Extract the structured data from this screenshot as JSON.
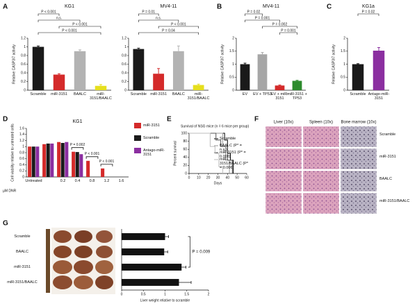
{
  "figure": {
    "letters": [
      "A",
      "B",
      "C",
      "D",
      "E",
      "F",
      "G"
    ],
    "panel_f": {
      "columns": [
        "Liver (10x)",
        "Spleen (10x)",
        "Bone marrow (10x)"
      ],
      "rows": [
        "Scramble",
        "miR-3151",
        "BAALC",
        "miR-3151/BAALC"
      ]
    }
  },
  "chart_data": [
    {
      "type": "bar",
      "title": "KG1",
      "ylabel": "Relative CASP3/7 activity",
      "categories": [
        "Scramble",
        "miR-3151",
        "BAALC",
        "miR-3151/BAALC"
      ],
      "values": [
        1.0,
        0.36,
        0.9,
        0.1
      ],
      "errors": [
        0.02,
        0.02,
        0.03,
        0.03
      ],
      "colors": [
        "#1a1a1a",
        "#d42a2a",
        "#b3b3b3",
        "#e6df1e"
      ],
      "ylim": [
        0,
        1.2
      ],
      "yticks": [
        0,
        0.2,
        0.4,
        0.6,
        0.8,
        1,
        1.2
      ],
      "annotations": [
        {
          "text": "P < 0.001",
          "between": [
            0,
            1
          ]
        },
        {
          "text": "n.s.",
          "between": [
            0,
            2
          ]
        },
        {
          "text": "P < 0.001",
          "between": [
            1,
            3
          ]
        },
        {
          "text": "P < 0.001",
          "between": [
            0,
            3
          ]
        }
      ]
    },
    {
      "type": "bar",
      "title": "MV4-11",
      "categories": [
        "Scramble",
        "miR-3151",
        "BAALC",
        "miR-3151/BAALC"
      ],
      "values": [
        0.95,
        0.38,
        0.9,
        0.12
      ],
      "errors": [
        0.02,
        0.12,
        0.12,
        0.02
      ],
      "colors": [
        "#1a1a1a",
        "#d42a2a",
        "#b3b3b3",
        "#e6df1e"
      ],
      "ylim": [
        0,
        1.2
      ],
      "yticks": [
        0,
        0.2,
        0.4,
        0.6,
        0.8,
        1,
        1.2
      ],
      "annotations": [
        {
          "text": "P = 0.01",
          "between": [
            0,
            1
          ]
        },
        {
          "text": "n.s.",
          "between": [
            0,
            2
          ]
        },
        {
          "text": "P < 0.001",
          "between": [
            1,
            3
          ]
        },
        {
          "text": "P = 0.04",
          "between": [
            0,
            3
          ]
        }
      ]
    },
    {
      "type": "bar",
      "title": "MV4-11",
      "ylabel": "Relative CASP3/7 activity",
      "categories": [
        "EV",
        "EV + TP53",
        "EV + miR-3151",
        "miR-3151 + TP53"
      ],
      "values": [
        1.0,
        1.38,
        0.18,
        0.36
      ],
      "errors": [
        0.04,
        0.07,
        0.02,
        0.02
      ],
      "colors": [
        "#1a1a1a",
        "#a6a6a6",
        "#d42a2a",
        "#2e8b2e"
      ],
      "ylim": [
        0,
        2
      ],
      "yticks": [
        0,
        0.5,
        1,
        1.5,
        2
      ],
      "annotations": [
        {
          "text": "P = 0.02",
          "between": [
            0,
            1
          ]
        },
        {
          "text": "P = 0.001",
          "between": [
            0,
            2
          ]
        },
        {
          "text": "P = 0.002",
          "between": [
            1,
            3
          ]
        },
        {
          "text": "P = 0.001",
          "between": [
            2,
            3
          ]
        }
      ]
    },
    {
      "type": "bar",
      "title": "KG1a",
      "ylabel": "Relative CASP3/7 activity",
      "categories": [
        "Scramble",
        "Antago-miR-3151"
      ],
      "values": [
        1.0,
        1.52
      ],
      "errors": [
        0.02,
        0.12
      ],
      "colors": [
        "#1a1a1a",
        "#8b2fa0"
      ],
      "ylim": [
        0,
        2
      ],
      "yticks": [
        0,
        0.5,
        1,
        1.5,
        2
      ],
      "annotations": [
        {
          "text": "P = 0.02",
          "between": [
            0,
            1
          ]
        }
      ]
    },
    {
      "type": "bar",
      "title": "KG1",
      "ylabel": "Cell viability relative to untreated cells",
      "xlabel": "µM DNR",
      "categories": [
        "Untreated",
        null,
        "0.2",
        "0.4",
        "0.8",
        "1.2",
        "1.6"
      ],
      "series": [
        {
          "name": "miR-3151",
          "color": "#d42a2a",
          "values": [
            1.0,
            1.08,
            1.15,
            0.83,
            0.53,
            0.28,
            null
          ]
        },
        {
          "name": "Scramble",
          "color": "#1a1a1a",
          "values": [
            1.0,
            1.1,
            1.12,
            0.82,
            null,
            null,
            null
          ]
        },
        {
          "name": "Antago-miR-3151",
          "color": "#8b2fa0",
          "values": [
            1.0,
            1.1,
            1.15,
            0.75,
            null,
            null,
            null
          ]
        }
      ],
      "ylim": [
        0,
        1.6
      ],
      "yticks": [
        0,
        0.2,
        0.4,
        0.6,
        0.8,
        1,
        1.2,
        1.4,
        1.6
      ],
      "legend": "right",
      "annotations": [
        {
          "text": "P = 0.002",
          "category": 3
        },
        {
          "text": "P < 0.001",
          "category": 4
        },
        {
          "text": "P < 0.001",
          "category": 5
        }
      ]
    },
    {
      "type": "line",
      "step": true,
      "title": "Survival of NSG mice (n = 6 mice per group)",
      "ylabel": "Percent survival",
      "xlabel": "Days",
      "series": [
        {
          "name": "Scramble",
          "color": "#000000",
          "x": [
            0,
            37,
            40,
            43,
            46
          ],
          "values": [
            100,
            83,
            50,
            33,
            0
          ]
        },
        {
          "name": "BAALC (P* = n.s.)",
          "color": "#9a9a9a",
          "x": [
            0,
            35,
            38,
            42
          ],
          "values": [
            100,
            67,
            33,
            0
          ]
        },
        {
          "name": "miR-3151 (P* = 0.008)",
          "color": "#555555",
          "x": [
            0,
            28,
            33,
            40,
            45
          ],
          "values": [
            100,
            83,
            67,
            33,
            0
          ]
        },
        {
          "name": "miR-3151/BAALC (P* = 0.006)",
          "color": "#bdbdbd",
          "x": [
            0,
            22,
            27,
            31,
            35
          ],
          "values": [
            100,
            67,
            50,
            17,
            0
          ]
        }
      ],
      "xlim": [
        0,
        60
      ],
      "xticks": [
        0,
        10,
        20,
        30,
        40,
        50,
        60
      ],
      "ylim": [
        0,
        100
      ],
      "yticks": [
        0,
        20,
        40,
        60,
        80,
        100
      ]
    },
    {
      "type": "bar",
      "orientation": "horizontal",
      "xlabel": "Liver weight relative to scramble",
      "categories": [
        "Scramble",
        "BAALC",
        "miR-3151",
        "miR-3151/BAALC"
      ],
      "values": [
        1.0,
        0.98,
        1.38,
        1.32
      ],
      "errors": [
        0.08,
        0.08,
        0.1,
        0.28
      ],
      "color": "#111111",
      "xlim": [
        0,
        2
      ],
      "xticks": [
        0,
        0.5,
        1,
        1.5,
        2
      ],
      "annotations": [
        {
          "text": "P = 0.009",
          "between": [
            0,
            2
          ]
        }
      ]
    }
  ]
}
